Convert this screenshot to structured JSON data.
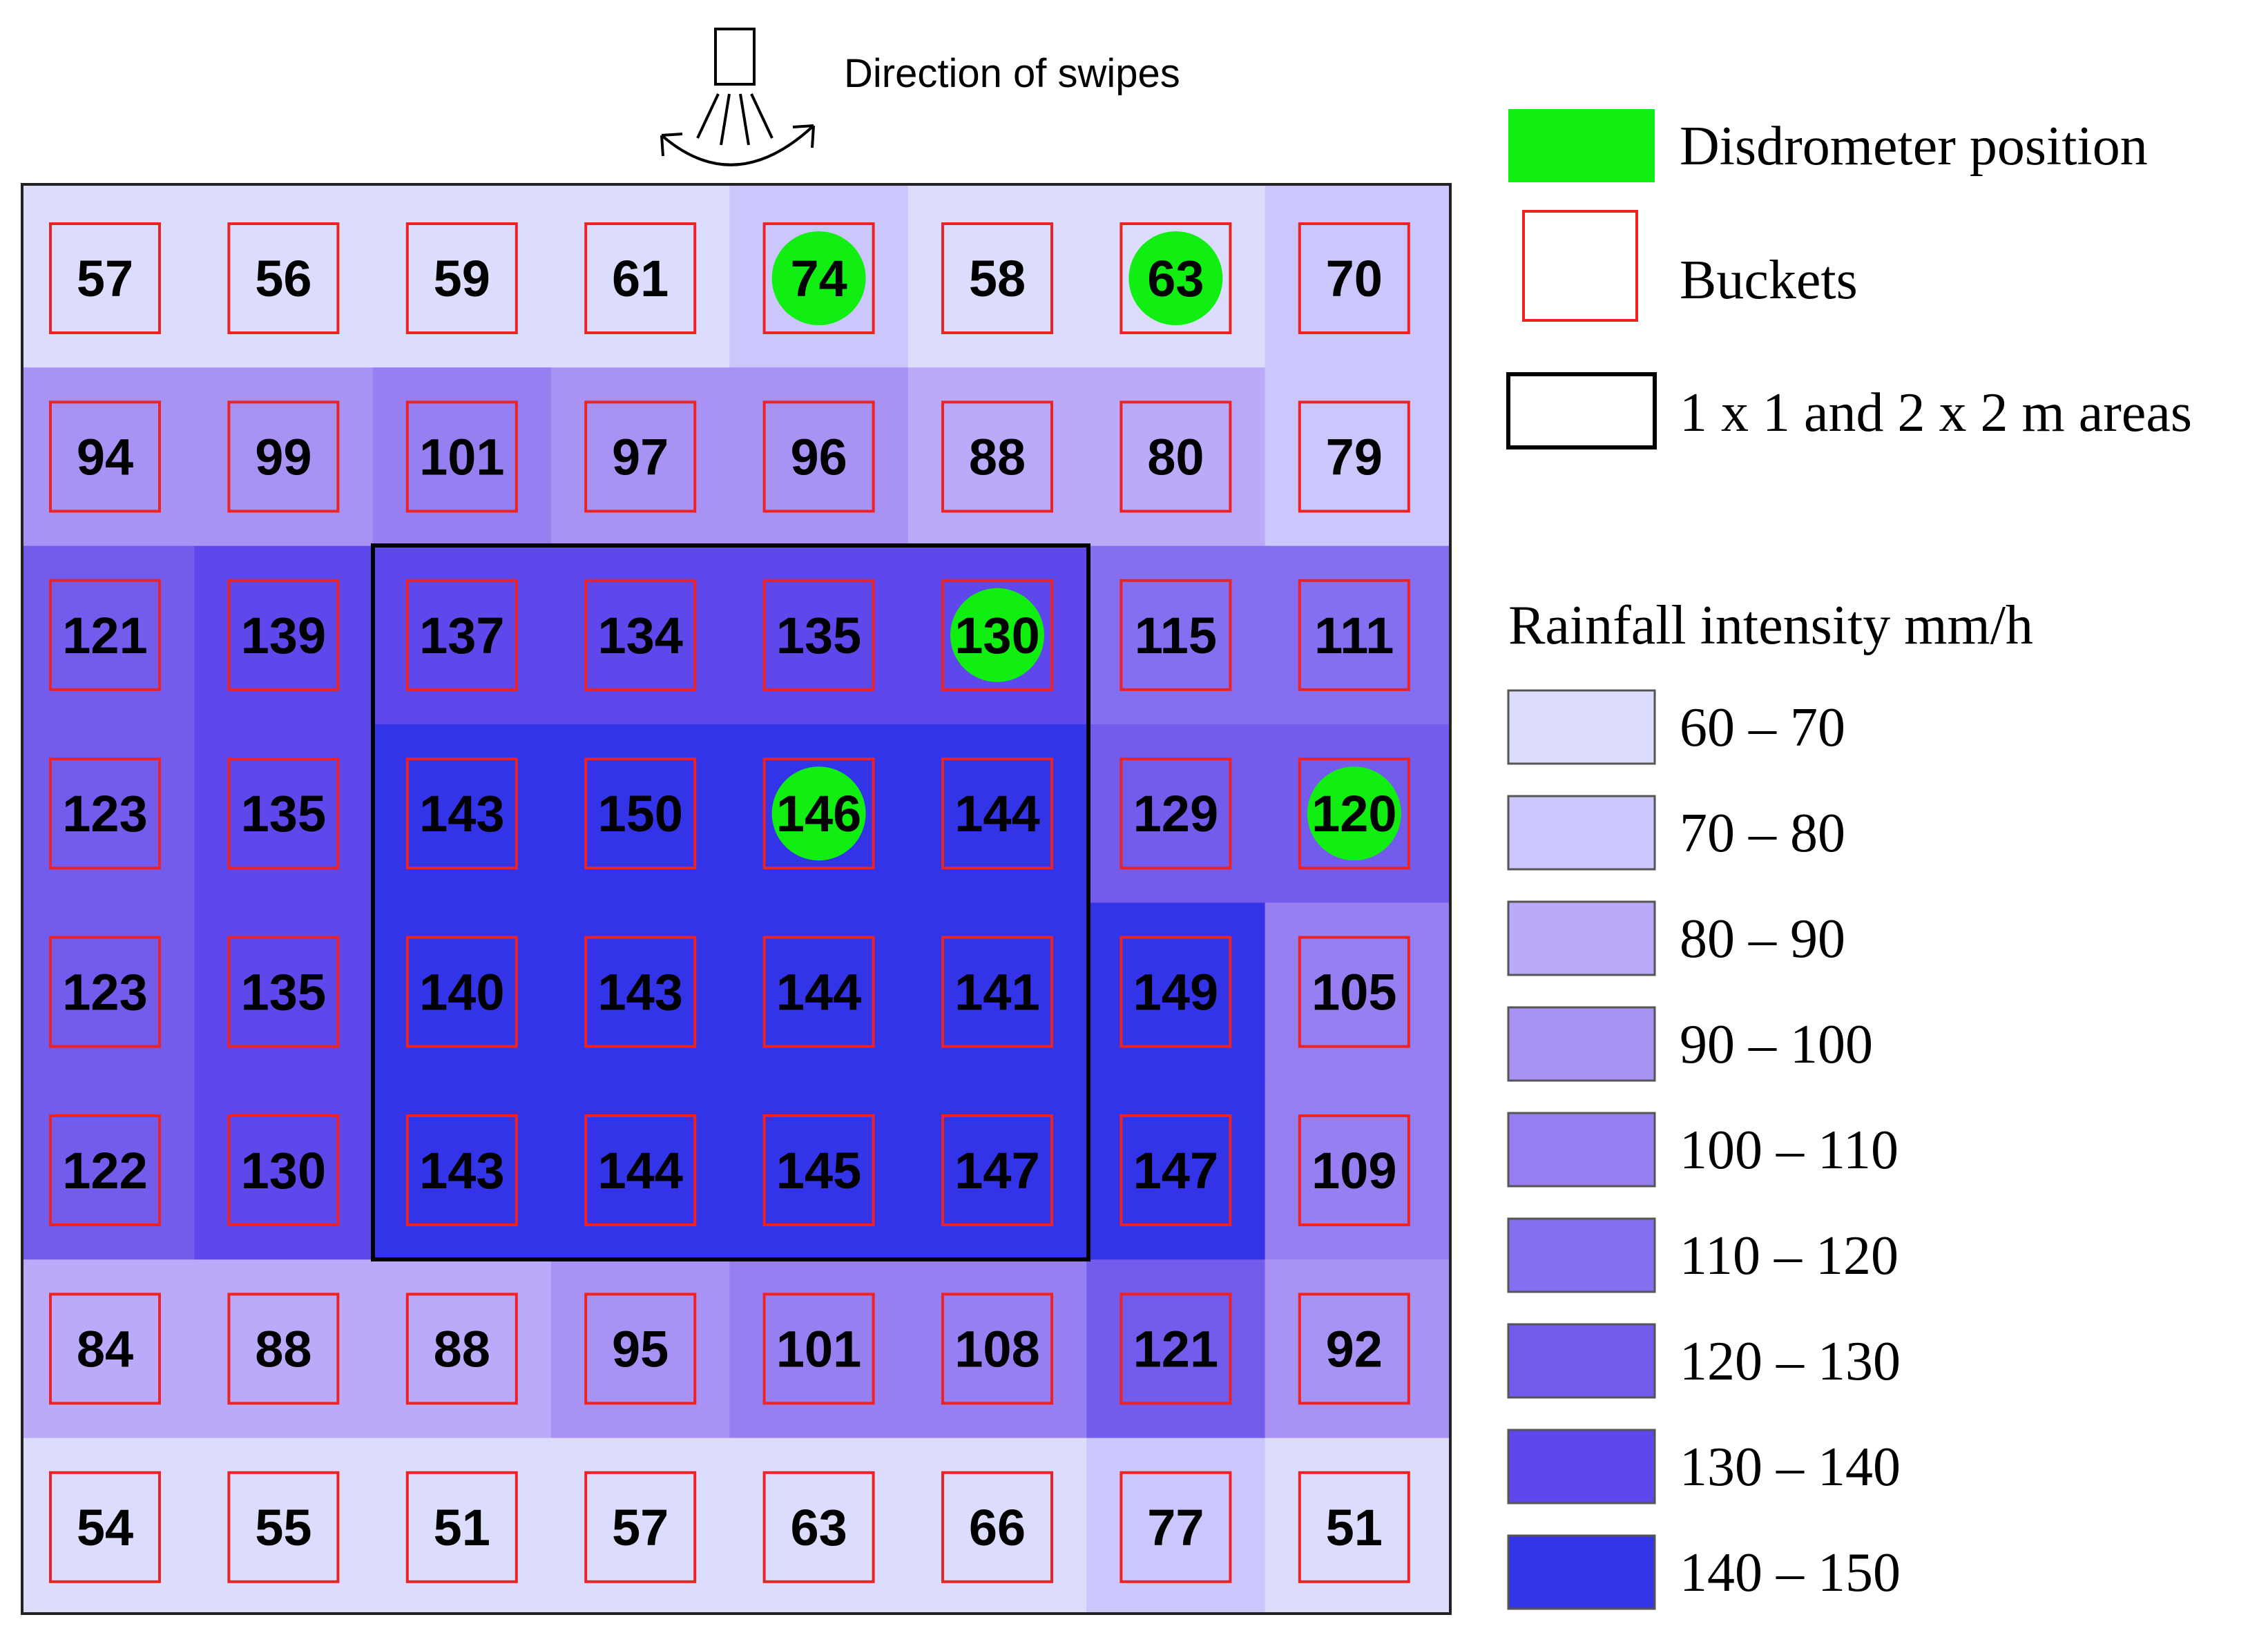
{
  "caption": "Direction of swipes",
  "legend": {
    "disdrometer_label": "Disdrometer position",
    "disdrometer_color": "#11ee11",
    "buckets_label": "Buckets",
    "bucket_color": "#ee2222",
    "areas_label": "1 x 1 and 2 x 2 m areas",
    "intensity_title": "Rainfall intensity mm/h",
    "classes": [
      {
        "label": "60 – 70",
        "min": 60,
        "max": 70,
        "color": "#dcdcfc"
      },
      {
        "label": "70 – 80",
        "min": 70,
        "max": 80,
        "color": "#cbc6fb"
      },
      {
        "label": "80 – 90",
        "min": 80,
        "max": 90,
        "color": "#bba9f9"
      },
      {
        "label": "90 – 100",
        "min": 90,
        "max": 100,
        "color": "#a893f5"
      },
      {
        "label": "100 – 110",
        "min": 100,
        "max": 110,
        "color": "#977ff2"
      },
      {
        "label": "110 – 120",
        "min": 110,
        "max": 120,
        "color": "#856ff0"
      },
      {
        "label": "120 – 130",
        "min": 120,
        "max": 130,
        "color": "#735bec"
      },
      {
        "label": "130 – 140",
        "min": 130,
        "max": 140,
        "color": "#5f48eb"
      },
      {
        "label": "140 – 150",
        "min": 140,
        "max": 150,
        "color": "#3333e8"
      }
    ]
  },
  "chart_data": {
    "type": "heatmap",
    "rows": [
      [
        57,
        56,
        59,
        61,
        74,
        58,
        63,
        70
      ],
      [
        94,
        99,
        101,
        97,
        96,
        88,
        80,
        79
      ],
      [
        121,
        139,
        137,
        134,
        135,
        130,
        115,
        111
      ],
      [
        123,
        135,
        143,
        150,
        146,
        144,
        129,
        120
      ],
      [
        123,
        135,
        140,
        143,
        144,
        141,
        149,
        105
      ],
      [
        122,
        130,
        143,
        144,
        145,
        147,
        147,
        109
      ],
      [
        84,
        88,
        88,
        95,
        101,
        108,
        121,
        92
      ],
      [
        54,
        55,
        51,
        57,
        63,
        66,
        77,
        51
      ]
    ],
    "disdrometers": [
      [
        0,
        4
      ],
      [
        0,
        6
      ],
      [
        2,
        5
      ],
      [
        3,
        4
      ],
      [
        3,
        7
      ]
    ]
  }
}
